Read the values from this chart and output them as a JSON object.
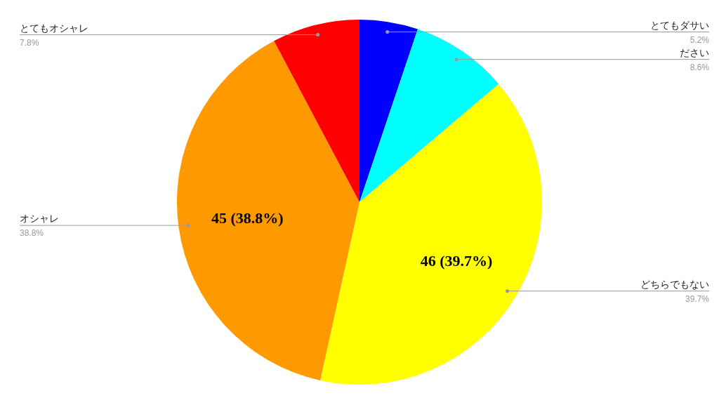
{
  "chart_data": {
    "type": "pie",
    "categories": [
      "とてもダサい",
      "ださい",
      "どちらでもない",
      "オシャレ",
      "とてもオシャレ"
    ],
    "values": [
      6,
      10,
      46,
      45,
      9
    ],
    "colors": [
      "#0000ff",
      "#00ffff",
      "#ffff00",
      "#ff9900",
      "#ff0000"
    ],
    "value_labels": [
      null,
      null,
      "46 (39.7%)",
      "45 (38.8%)",
      null
    ],
    "annotations": [
      "5.2%",
      "8.6%",
      "39.7%",
      "38.8%",
      "7.8%"
    ]
  }
}
